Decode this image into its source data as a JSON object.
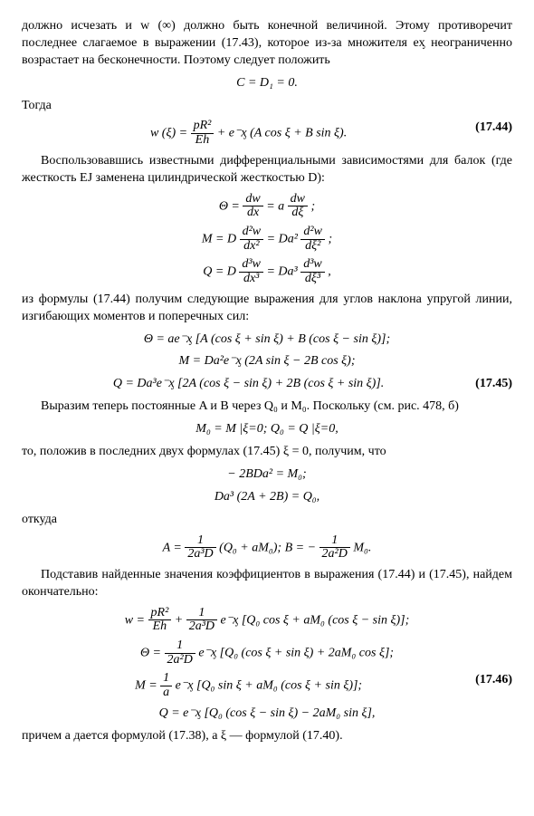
{
  "para1": "должно исчезать и w (∞) должно быть конечной величиной. Этому противоречит последнее слагаемое в выражении (17.43), которое из-за множителя eᶍ неограниченно возрастает на бесконечности. Поэтому следует положить",
  "eq_CD": "C = D₁ = 0.",
  "togda": "Тогда",
  "eq1744": {
    "lhs": "w (ξ) = ",
    "frac_n": "pR²",
    "frac_d": "Eh",
    "rhs": " + e⁻ᶍ (A cos ξ + B sin ξ).",
    "num": "(17.44)"
  },
  "para2": "Воспользовавшись известными дифференциальными зависимостями для балок (где жесткость EJ заменена цилиндрической жесткостью D):",
  "eq_theta": {
    "pre": "Θ = ",
    "f1n": "dw",
    "f1d": "dx",
    "mid": " = a ",
    "f2n": "dw",
    "f2d": "dξ",
    "end": " ;"
  },
  "eq_M": {
    "pre": "M = D ",
    "f1n": "d²w",
    "f1d": "dx²",
    "mid": " = Da² ",
    "f2n": "d²w",
    "f2d": "dξ²",
    "end": " ;"
  },
  "eq_Q": {
    "pre": "Q = D ",
    "f1n": "d³w",
    "f1d": "dx³",
    "mid": " = Da³ ",
    "f2n": "d³w",
    "f2d": "dξ³",
    "end": " ,"
  },
  "para3": "из формулы (17.44) получим следующие выражения для углов наклона упругой линии, изгибающих моментов и поперечных сил:",
  "eq1745a": "Θ = ae⁻ᶍ [A (cos ξ + sin ξ) + B (cos ξ − sin ξ)];",
  "eq1745b": "M = Da²e⁻ᶍ (2A sin ξ − 2B cos ξ);",
  "eq1745c": "Q = Da³e⁻ᶍ [2A (cos ξ − sin ξ) + 2B (cos ξ + sin ξ)].",
  "eq1745num": "(17.45)",
  "para4": "Выразим теперь постоянные A и B через Q₀ и M₀. Поскольку (см. рис. 478, б)",
  "eq_M0Q0": "M₀ = M |ξ=0;    Q₀ = Q |ξ=0,",
  "para5": "то, положив в последних двух формулах (17.45) ξ = 0, получим, что",
  "eq_sys1": "− 2BDa² = M₀;",
  "eq_sys2": "Da³ (2A + 2B) = Q₀,",
  "otkuda": "откуда",
  "eq_AB": {
    "pre": "A = ",
    "f1n": "1",
    "f1d": "2a³D",
    "mid": " (Q₀ + aM₀);    B = − ",
    "f2n": "1",
    "f2d": "2a²D",
    "end": " M₀."
  },
  "para6": "Подставив найденные значения коэффициентов в выражения (17.44) и (17.45), найдем окончательно:",
  "eq1746a": {
    "pre": "w = ",
    "f1n": "pR²",
    "f1d": "Eh",
    "mid1": " + ",
    "f2n": "1",
    "f2d": "2a³D",
    "mid2": " e⁻ᶍ [Q₀ cos ξ + aM₀ (cos ξ − sin ξ)];"
  },
  "eq1746b": {
    "pre": "Θ = ",
    "fn": "1",
    "fd": "2a²D",
    "end": " e⁻ᶍ [Q₀ (cos ξ + sin ξ) + 2aM₀ cos ξ];"
  },
  "eq1746c": {
    "pre": "M = ",
    "fn": "1",
    "fd": "a",
    "end": " e⁻ᶍ [Q₀ sin ξ + aM₀ (cos ξ + sin ξ)];",
    "num": "(17.46)"
  },
  "eq1746d": "Q = e⁻ᶍ [Q₀ (cos ξ − sin ξ) − 2aM₀ sin ξ],",
  "para7": "причем a дается формулой (17.38), а ξ — формулой (17.40)."
}
